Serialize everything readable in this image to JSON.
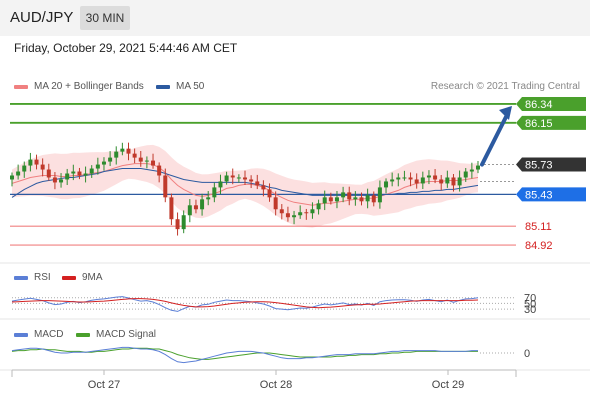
{
  "header": {
    "pair": "AUD/JPY",
    "timeframe": "30 MIN"
  },
  "datetime": "Friday, October 29, 2021 5:44:46 AM CET",
  "legend_main": [
    {
      "label": "MA 20 + Bollinger Bands",
      "color": "#f08080"
    },
    {
      "label": "MA 50",
      "color": "#2c5aa0"
    }
  ],
  "credit": "Research © 2021 Trading Central",
  "legend_rsi": [
    {
      "label": "RSI",
      "color": "#5b7fd6"
    },
    {
      "label": "9MA",
      "color": "#d42020"
    }
  ],
  "legend_macd": [
    {
      "label": "MACD",
      "color": "#5b7fd6"
    },
    {
      "label": "MACD Signal",
      "color": "#4aa02c"
    }
  ],
  "colors": {
    "resistance": "#4aa02c",
    "pivot": "#2c5aa0",
    "support": "#f08080",
    "current": "#333333",
    "bull_candle": "#2e8b2e",
    "bear_candle": "#c0392b",
    "band_fill": "#fbdada"
  },
  "chart_data": [
    {
      "type": "candlestick",
      "price_range": [
        84.85,
        86.42
      ],
      "levels": [
        {
          "label": "86.34",
          "value": 86.34,
          "role": "resistance"
        },
        {
          "label": "86.15",
          "value": 86.15,
          "role": "resistance"
        },
        {
          "label": "85.73",
          "value": 85.73,
          "role": "current"
        },
        {
          "label": "85.43",
          "value": 85.43,
          "role": "pivot"
        },
        {
          "label": "85.11",
          "value": 85.11,
          "role": "support"
        },
        {
          "label": "84.92",
          "value": 84.92,
          "role": "support"
        }
      ],
      "x_ticks": [
        "Oct 27",
        "Oct 28",
        "Oct 29"
      ],
      "close": [
        85.62,
        85.66,
        85.72,
        85.78,
        85.73,
        85.68,
        85.6,
        85.55,
        85.58,
        85.64,
        85.66,
        85.62,
        85.64,
        85.69,
        85.73,
        85.76,
        85.8,
        85.86,
        85.89,
        85.84,
        85.8,
        85.76,
        85.77,
        85.72,
        85.62,
        85.4,
        85.18,
        85.08,
        85.22,
        85.32,
        85.28,
        85.38,
        85.4,
        85.5,
        85.56,
        85.62,
        85.6,
        85.6,
        85.58,
        85.56,
        85.52,
        85.48,
        85.4,
        85.28,
        85.24,
        85.2,
        85.22,
        85.25,
        85.24,
        85.28,
        85.34,
        85.4,
        85.36,
        85.4,
        85.45,
        85.38,
        85.4,
        85.36,
        85.42,
        85.35,
        85.5,
        85.56,
        85.58,
        85.6,
        85.6,
        85.58,
        85.54,
        85.6,
        85.62,
        85.58,
        85.54,
        85.6,
        85.52,
        85.6,
        85.66,
        85.68,
        85.72
      ],
      "ma20": [
        85.54,
        85.56,
        85.58,
        85.6,
        85.61,
        85.62,
        85.62,
        85.62,
        85.61,
        85.61,
        85.62,
        85.62,
        85.63,
        85.64,
        85.65,
        85.66,
        85.68,
        85.7,
        85.72,
        85.73,
        85.74,
        85.74,
        85.74,
        85.73,
        85.7,
        85.65,
        85.58,
        85.52,
        85.48,
        85.45,
        85.42,
        85.41,
        85.42,
        85.44,
        85.46,
        85.49,
        85.5,
        85.52,
        85.53,
        85.53,
        85.52,
        85.5,
        85.47,
        85.43,
        85.4,
        85.37,
        85.35,
        85.34,
        85.33,
        85.32,
        85.33,
        85.34,
        85.34,
        85.35,
        85.36,
        85.37,
        85.38,
        85.38,
        85.39,
        85.39,
        85.41,
        85.43,
        85.45,
        85.47,
        85.5,
        85.52,
        85.54,
        85.55,
        85.56,
        85.56,
        85.56,
        85.57,
        85.57,
        85.57,
        85.58,
        85.59,
        85.6
      ],
      "ma50": [
        85.4,
        85.44,
        85.48,
        85.51,
        85.54,
        85.56,
        85.57,
        85.58,
        85.59,
        85.6,
        85.6,
        85.61,
        85.62,
        85.63,
        85.64,
        85.66,
        85.67,
        85.68,
        85.69,
        85.69,
        85.69,
        85.69,
        85.68,
        85.67,
        85.66,
        85.64,
        85.62,
        85.6,
        85.58,
        85.57,
        85.56,
        85.55,
        85.55,
        85.55,
        85.55,
        85.55,
        85.55,
        85.55,
        85.55,
        85.54,
        85.53,
        85.52,
        85.5,
        85.49,
        85.47,
        85.46,
        85.45,
        85.44,
        85.43,
        85.42,
        85.42,
        85.42,
        85.42,
        85.42,
        85.42,
        85.42,
        85.42,
        85.42,
        85.42,
        85.42,
        85.42,
        85.43,
        85.43,
        85.44,
        85.44,
        85.45,
        85.45,
        85.46,
        85.46,
        85.47,
        85.47,
        85.48,
        85.48,
        85.49,
        85.5,
        85.51,
        85.52
      ],
      "forecast_arrow": {
        "from": 85.73,
        "to": 86.34
      }
    },
    {
      "type": "line",
      "name": "RSI",
      "y_ticks": [
        "70",
        "50",
        "30"
      ],
      "rsi": [
        58,
        62,
        65,
        68,
        64,
        60,
        52,
        46,
        48,
        54,
        57,
        53,
        56,
        61,
        64,
        66,
        69,
        72,
        74,
        69,
        63,
        58,
        60,
        55,
        46,
        35,
        26,
        22,
        32,
        40,
        37,
        45,
        47,
        54,
        58,
        62,
        60,
        60,
        58,
        56,
        52,
        48,
        41,
        32,
        30,
        28,
        31,
        34,
        33,
        37,
        43,
        48,
        45,
        48,
        52,
        46,
        48,
        44,
        50,
        43,
        56,
        60,
        62,
        63,
        63,
        61,
        57,
        62,
        64,
        60,
        56,
        62,
        54,
        61,
        66,
        67,
        70
      ],
      "ma9": [
        55,
        56,
        57,
        58,
        59,
        60,
        60,
        59,
        58,
        57,
        56,
        55,
        55,
        56,
        57,
        58,
        60,
        62,
        64,
        66,
        67,
        67,
        66,
        64,
        61,
        57,
        52,
        47,
        43,
        40,
        38,
        38,
        39,
        41,
        44,
        47,
        50,
        52,
        54,
        55,
        56,
        56,
        55,
        53,
        50,
        47,
        44,
        41,
        38,
        36,
        35,
        36,
        37,
        39,
        41,
        43,
        45,
        46,
        47,
        47,
        48,
        50,
        52,
        54,
        56,
        58,
        59,
        60,
        60,
        60,
        60,
        60,
        60,
        60,
        61,
        61,
        62
      ]
    },
    {
      "type": "line",
      "name": "MACD",
      "y_ticks": [
        "0"
      ],
      "macd": [
        0.03,
        0.04,
        0.05,
        0.06,
        0.06,
        0.05,
        0.03,
        0.01,
        0,
        0,
        0.01,
        0.01,
        0.01,
        0.02,
        0.03,
        0.04,
        0.05,
        0.06,
        0.07,
        0.07,
        0.06,
        0.05,
        0.05,
        0.04,
        0.02,
        -0.02,
        -0.07,
        -0.11,
        -0.12,
        -0.11,
        -0.1,
        -0.08,
        -0.06,
        -0.04,
        -0.02,
        0,
        0.01,
        0.02,
        0.02,
        0.02,
        0.01,
        0,
        -0.02,
        -0.04,
        -0.06,
        -0.07,
        -0.07,
        -0.07,
        -0.06,
        -0.06,
        -0.05,
        -0.04,
        -0.03,
        -0.02,
        -0.02,
        -0.02,
        -0.01,
        -0.01,
        -0.01,
        -0.01,
        0,
        0.01,
        0.02,
        0.02,
        0.03,
        0.03,
        0.03,
        0.03,
        0.03,
        0.03,
        0.02,
        0.02,
        0.02,
        0.02,
        0.02,
        0.03,
        0.03
      ],
      "signal": [
        0.02,
        0.03,
        0.03,
        0.04,
        0.04,
        0.05,
        0.04,
        0.04,
        0.03,
        0.02,
        0.02,
        0.02,
        0.01,
        0.01,
        0.02,
        0.02,
        0.03,
        0.04,
        0.05,
        0.05,
        0.06,
        0.06,
        0.06,
        0.05,
        0.05,
        0.03,
        0.01,
        -0.02,
        -0.04,
        -0.06,
        -0.07,
        -0.08,
        -0.08,
        -0.07,
        -0.06,
        -0.05,
        -0.04,
        -0.03,
        -0.02,
        -0.01,
        0,
        0,
        0,
        -0.01,
        -0.02,
        -0.03,
        -0.04,
        -0.05,
        -0.05,
        -0.05,
        -0.05,
        -0.05,
        -0.05,
        -0.04,
        -0.04,
        -0.03,
        -0.03,
        -0.02,
        -0.02,
        -0.02,
        -0.01,
        -0.01,
        0,
        0,
        0.01,
        0.01,
        0.02,
        0.02,
        0.02,
        0.02,
        0.02,
        0.02,
        0.02,
        0.02,
        0.02,
        0.02,
        0.02
      ]
    }
  ]
}
